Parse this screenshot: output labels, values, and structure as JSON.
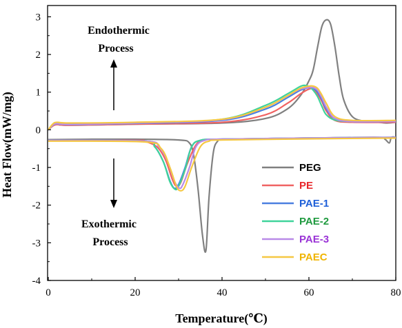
{
  "chart_data": {
    "type": "line",
    "xlabel": "Temperature(℃)",
    "ylabel": "Heat Flow(mW/mg)",
    "xlim": [
      0,
      80
    ],
    "ylim": [
      -4,
      3.3
    ],
    "x_ticks": [
      "0",
      "20",
      "40",
      "60",
      "80"
    ],
    "y_ticks": [
      "-4",
      "-3",
      "-2",
      "-1",
      "0",
      "1",
      "2",
      "3"
    ],
    "legend_position": "bottom-right",
    "annotations": {
      "endo_line1": "Endothermic",
      "endo_line2": "Process",
      "exo_line1": "Exothermic",
      "exo_line2": "Process"
    },
    "series": [
      {
        "name": "PEG",
        "color": "#808080",
        "label_color": "#000000",
        "heating": [
          [
            0,
            0.0
          ],
          [
            1,
            0.1
          ],
          [
            2,
            0.14
          ],
          [
            5,
            0.12
          ],
          [
            20,
            0.15
          ],
          [
            40,
            0.18
          ],
          [
            50,
            0.3
          ],
          [
            55,
            0.55
          ],
          [
            58,
            0.9
          ],
          [
            60,
            1.3
          ],
          [
            61,
            1.6
          ],
          [
            62,
            2.2
          ],
          [
            63,
            2.75
          ],
          [
            64,
            2.92
          ],
          [
            65,
            2.8
          ],
          [
            66,
            2.2
          ],
          [
            67,
            1.4
          ],
          [
            68,
            0.8
          ],
          [
            70,
            0.35
          ],
          [
            73,
            0.22
          ],
          [
            76,
            0.2
          ],
          [
            78,
            0.18
          ],
          [
            80,
            0.2
          ]
        ],
        "cooling": [
          [
            80,
            -0.2
          ],
          [
            79,
            -0.2
          ],
          [
            78.5,
            -0.35
          ],
          [
            77.5,
            -0.25
          ],
          [
            76,
            -0.2
          ],
          [
            60,
            -0.22
          ],
          [
            45,
            -0.25
          ],
          [
            40,
            -0.25
          ],
          [
            39,
            -0.3
          ],
          [
            38,
            -0.6
          ],
          [
            37,
            -1.8
          ],
          [
            36.3,
            -3.2
          ],
          [
            35.5,
            -2.8
          ],
          [
            34.5,
            -1.6
          ],
          [
            33.5,
            -0.7
          ],
          [
            32.5,
            -0.35
          ],
          [
            30,
            -0.27
          ],
          [
            20,
            -0.25
          ],
          [
            10,
            -0.25
          ],
          [
            0,
            -0.26
          ]
        ]
      },
      {
        "name": "PE",
        "color": "#f06262",
        "label_color": "#e8262a",
        "heating": [
          [
            0,
            0.0
          ],
          [
            1,
            0.1
          ],
          [
            2,
            0.14
          ],
          [
            5,
            0.12
          ],
          [
            20,
            0.15
          ],
          [
            40,
            0.2
          ],
          [
            50,
            0.4
          ],
          [
            55,
            0.7
          ],
          [
            58,
            0.95
          ],
          [
            60,
            1.08
          ],
          [
            61,
            1.08
          ],
          [
            62,
            0.95
          ],
          [
            63,
            0.75
          ],
          [
            64,
            0.5
          ],
          [
            66,
            0.25
          ],
          [
            70,
            0.2
          ],
          [
            80,
            0.2
          ]
        ],
        "cooling": [
          [
            80,
            -0.2
          ],
          [
            76,
            -0.22
          ],
          [
            60,
            -0.22
          ],
          [
            40,
            -0.25
          ],
          [
            36,
            -0.27
          ],
          [
            34,
            -0.4
          ],
          [
            32,
            -0.9
          ],
          [
            30.5,
            -1.4
          ],
          [
            29.5,
            -1.5
          ],
          [
            28.5,
            -1.3
          ],
          [
            27,
            -0.8
          ],
          [
            25,
            -0.45
          ],
          [
            22,
            -0.3
          ],
          [
            20,
            -0.28
          ],
          [
            0,
            -0.28
          ]
        ]
      },
      {
        "name": "PAE-1",
        "color": "#4a7fe0",
        "label_color": "#1e5fd8",
        "heating": [
          [
            0,
            0.0
          ],
          [
            1,
            0.12
          ],
          [
            2,
            0.16
          ],
          [
            5,
            0.14
          ],
          [
            20,
            0.17
          ],
          [
            40,
            0.25
          ],
          [
            50,
            0.55
          ],
          [
            55,
            0.85
          ],
          [
            58,
            1.05
          ],
          [
            60,
            1.12
          ],
          [
            61,
            1.1
          ],
          [
            62,
            1.0
          ],
          [
            63,
            0.8
          ],
          [
            64,
            0.55
          ],
          [
            66,
            0.3
          ],
          [
            70,
            0.22
          ],
          [
            80,
            0.22
          ]
        ],
        "cooling": [
          [
            80,
            -0.2
          ],
          [
            60,
            -0.22
          ],
          [
            40,
            -0.25
          ],
          [
            35,
            -0.28
          ],
          [
            33,
            -0.45
          ],
          [
            31.5,
            -1.0
          ],
          [
            30,
            -1.45
          ],
          [
            29,
            -1.55
          ],
          [
            28,
            -1.35
          ],
          [
            26.5,
            -0.85
          ],
          [
            24.5,
            -0.45
          ],
          [
            22,
            -0.3
          ],
          [
            0,
            -0.28
          ]
        ]
      },
      {
        "name": "PAE-2",
        "color": "#3fd39a",
        "label_color": "#1f9a3f",
        "heating": [
          [
            0,
            0.0
          ],
          [
            1,
            0.12
          ],
          [
            2,
            0.16
          ],
          [
            5,
            0.14
          ],
          [
            20,
            0.18
          ],
          [
            40,
            0.28
          ],
          [
            50,
            0.65
          ],
          [
            55,
            0.95
          ],
          [
            58,
            1.15
          ],
          [
            59,
            1.18
          ],
          [
            60,
            1.15
          ],
          [
            61,
            1.05
          ],
          [
            62,
            0.88
          ],
          [
            63,
            0.62
          ],
          [
            64,
            0.4
          ],
          [
            66,
            0.26
          ],
          [
            70,
            0.22
          ],
          [
            80,
            0.22
          ]
        ],
        "cooling": [
          [
            80,
            -0.2
          ],
          [
            60,
            -0.22
          ],
          [
            40,
            -0.25
          ],
          [
            35,
            -0.28
          ],
          [
            33,
            -0.45
          ],
          [
            31.5,
            -1.05
          ],
          [
            30,
            -1.5
          ],
          [
            29.2,
            -1.58
          ],
          [
            28,
            -1.38
          ],
          [
            26.5,
            -0.85
          ],
          [
            24.5,
            -0.45
          ],
          [
            22,
            -0.3
          ],
          [
            0,
            -0.28
          ]
        ]
      },
      {
        "name": "PAE-3",
        "color": "#b98ae8",
        "label_color": "#9a33d6",
        "heating": [
          [
            0,
            0.0
          ],
          [
            1,
            0.12
          ],
          [
            2,
            0.16
          ],
          [
            5,
            0.14
          ],
          [
            20,
            0.18
          ],
          [
            40,
            0.27
          ],
          [
            50,
            0.6
          ],
          [
            55,
            0.9
          ],
          [
            58,
            1.08
          ],
          [
            60,
            1.12
          ],
          [
            61,
            1.12
          ],
          [
            62,
            1.05
          ],
          [
            63,
            0.85
          ],
          [
            64,
            0.6
          ],
          [
            66,
            0.3
          ],
          [
            70,
            0.22
          ],
          [
            80,
            0.22
          ]
        ],
        "cooling": [
          [
            80,
            -0.2
          ],
          [
            60,
            -0.22
          ],
          [
            40,
            -0.25
          ],
          [
            36,
            -0.28
          ],
          [
            34,
            -0.45
          ],
          [
            32.5,
            -1.0
          ],
          [
            31,
            -1.45
          ],
          [
            30.2,
            -1.55
          ],
          [
            29,
            -1.35
          ],
          [
            27.5,
            -0.85
          ],
          [
            25.5,
            -0.45
          ],
          [
            22,
            -0.3
          ],
          [
            0,
            -0.28
          ]
        ]
      },
      {
        "name": "PAEC",
        "color": "#f5c842",
        "label_color": "#f0b400",
        "heating": [
          [
            0,
            0.0
          ],
          [
            1,
            0.15
          ],
          [
            2,
            0.2
          ],
          [
            5,
            0.18
          ],
          [
            20,
            0.2
          ],
          [
            40,
            0.28
          ],
          [
            50,
            0.6
          ],
          [
            55,
            0.9
          ],
          [
            58,
            1.1
          ],
          [
            60,
            1.16
          ],
          [
            61,
            1.16
          ],
          [
            62,
            1.1
          ],
          [
            63,
            0.92
          ],
          [
            64,
            0.7
          ],
          [
            66,
            0.35
          ],
          [
            70,
            0.25
          ],
          [
            80,
            0.25
          ]
        ],
        "cooling": [
          [
            80,
            -0.22
          ],
          [
            60,
            -0.24
          ],
          [
            40,
            -0.27
          ],
          [
            37,
            -0.3
          ],
          [
            35,
            -0.45
          ],
          [
            33,
            -1.0
          ],
          [
            31.5,
            -1.5
          ],
          [
            30.5,
            -1.62
          ],
          [
            29.5,
            -1.5
          ],
          [
            28,
            -1.0
          ],
          [
            26,
            -0.5
          ],
          [
            22,
            -0.32
          ],
          [
            0,
            -0.3
          ]
        ]
      }
    ]
  }
}
